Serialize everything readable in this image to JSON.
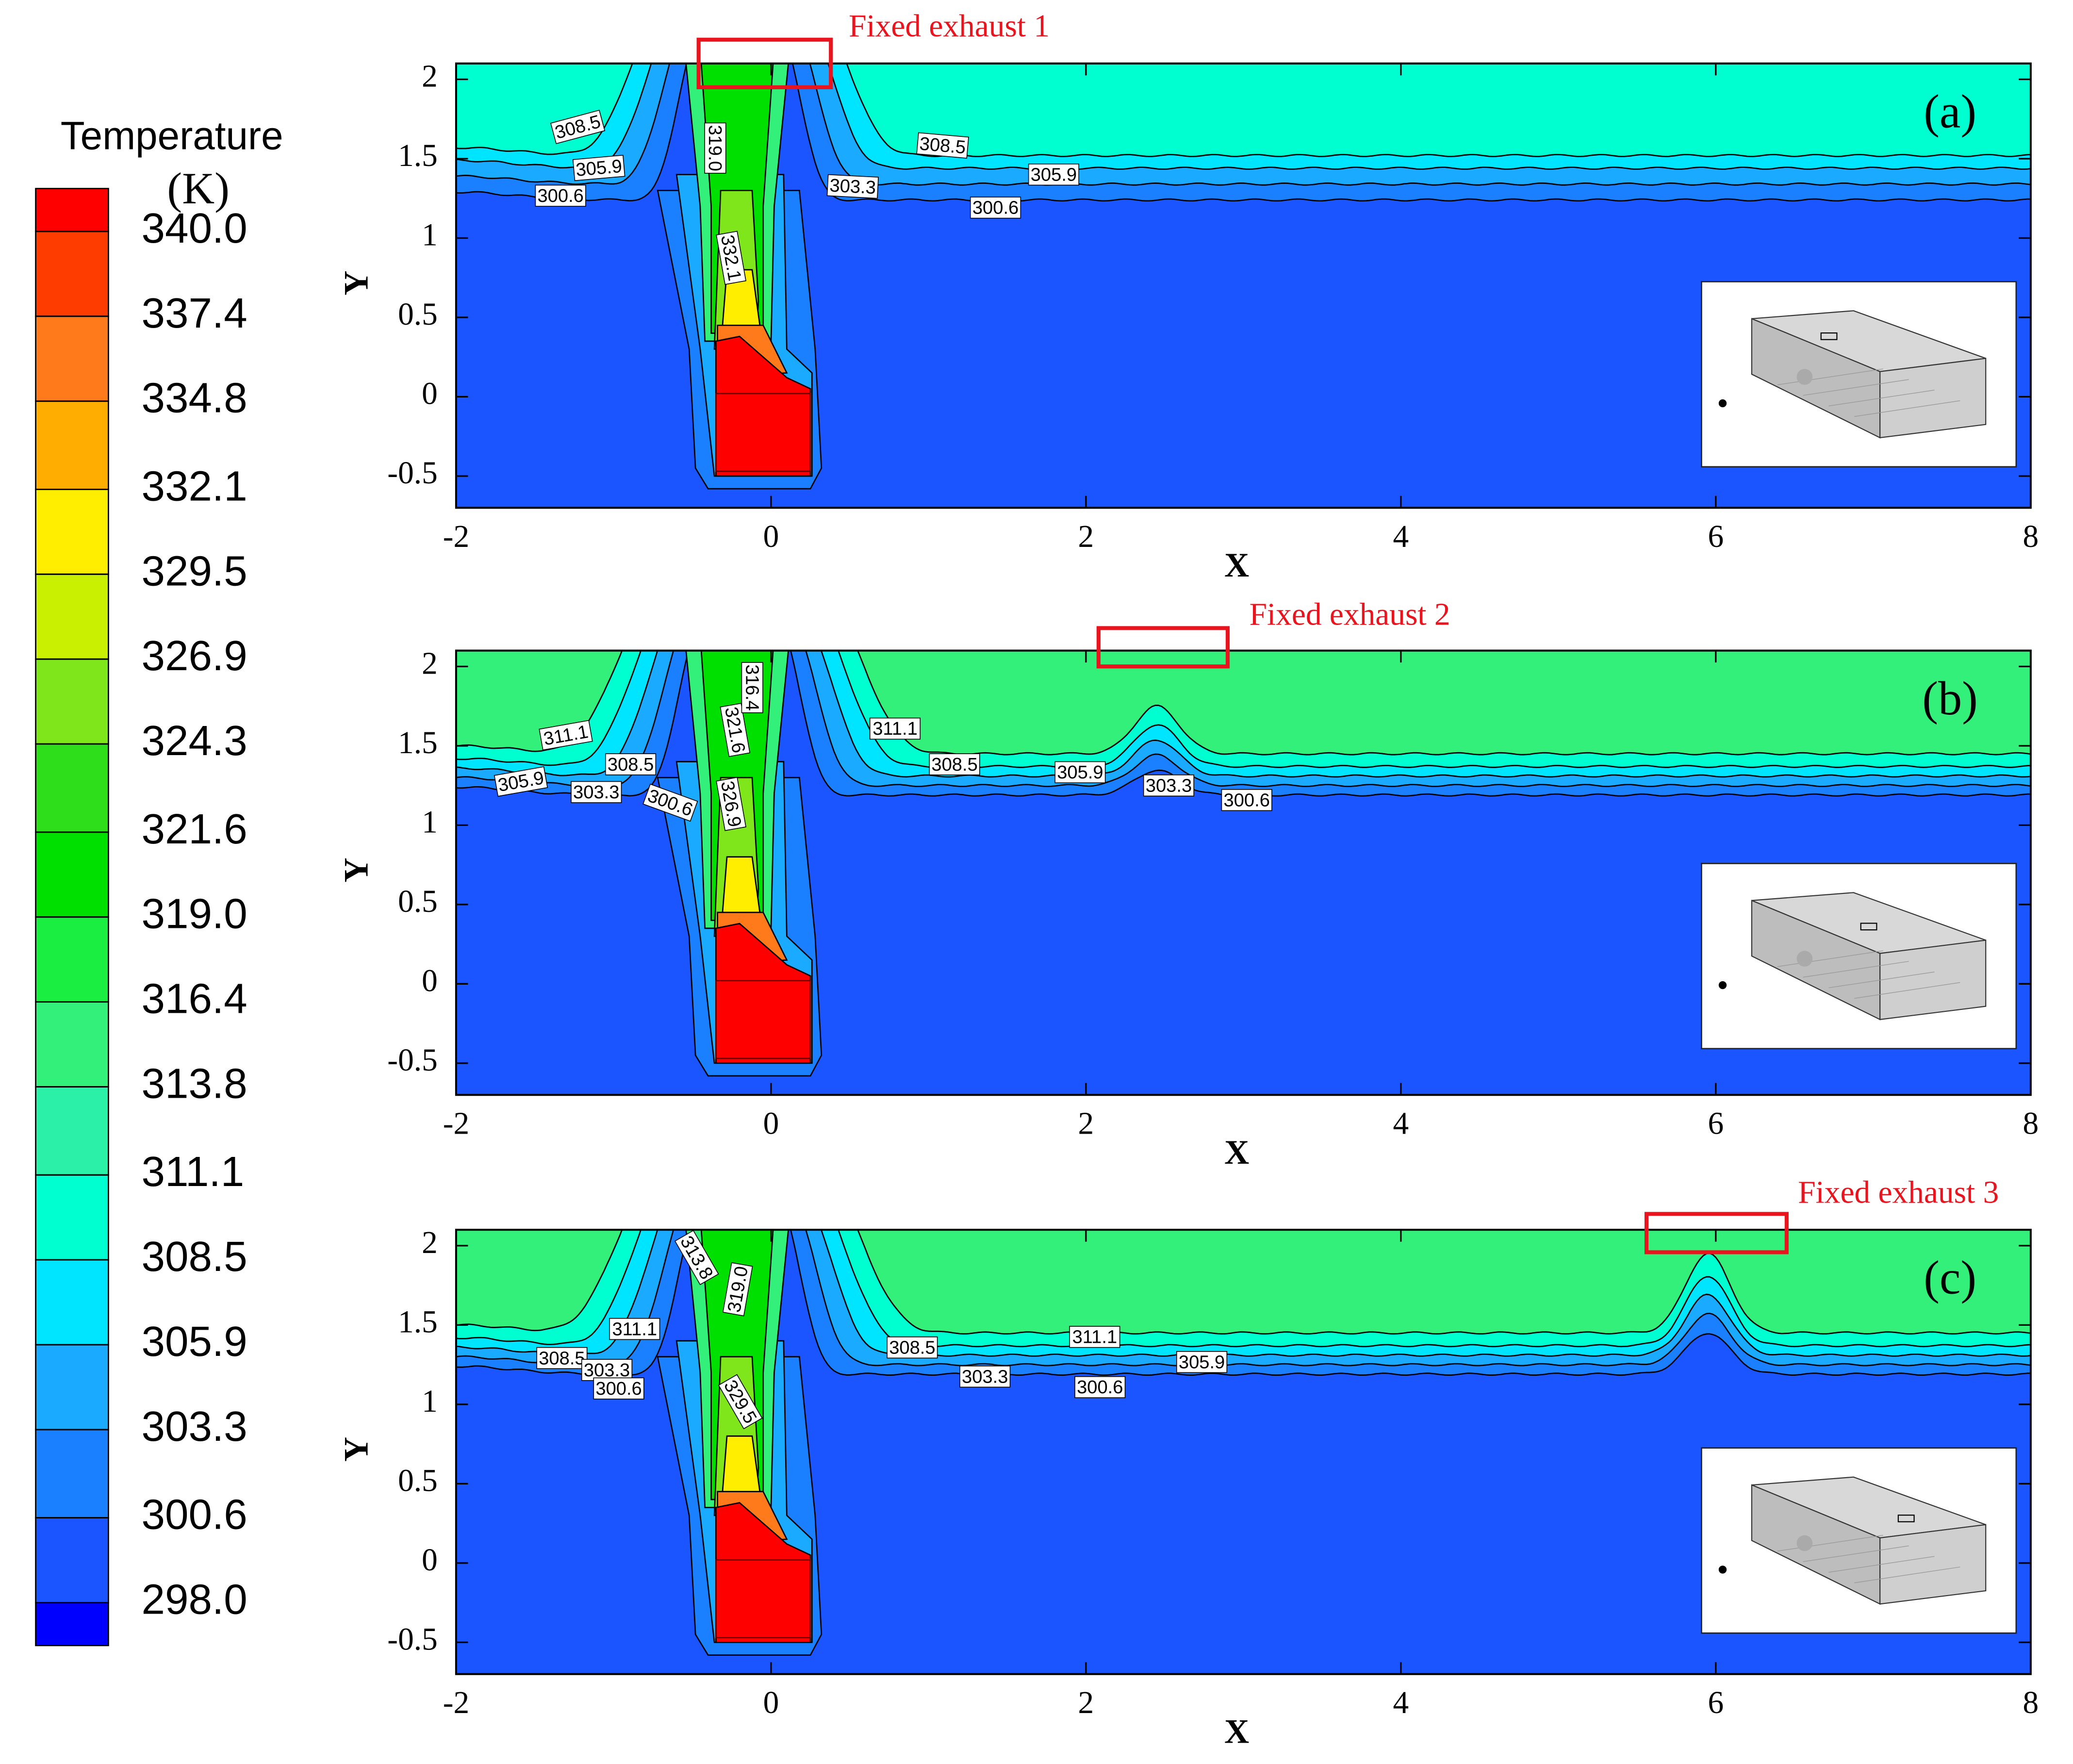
{
  "legend": {
    "title": "Temperature",
    "unit": "(K)",
    "levels": [
      {
        "value": 340,
        "label": "340.0"
      },
      337.4,
      334.8,
      332.1,
      329.5,
      326.9,
      324.3,
      321.6,
      {
        "value": 319,
        "label": "319.0"
      },
      316.4,
      313.8,
      311.1,
      308.5,
      305.9,
      303.3,
      300.6,
      {
        "value": 298,
        "label": "298.0"
      }
    ],
    "colors": [
      "#ff0000",
      "#ff3c00",
      "#ff7a1a",
      "#ffae00",
      "#ffee00",
      "#c8f000",
      "#7ee61a",
      "#2ede1a",
      "#00e000",
      "#1aee40",
      "#33f07a",
      "#2af0a8",
      "#00ffd0",
      "#00e5ff",
      "#1aaaff",
      "#1a80ff",
      "#1a55ff",
      "#0000ff"
    ]
  },
  "chart_data": [
    {
      "type": "contour",
      "panel_label": "(a)",
      "annotation": "Fixed exhaust 1",
      "x_label": "X",
      "y_label": "Y",
      "xlim": [
        -2,
        8
      ],
      "ylim": [
        -0.7,
        2.1
      ],
      "xticks": [
        -2,
        0,
        2,
        4,
        6,
        8
      ],
      "yticks": [
        -0.5,
        0,
        0.5,
        1,
        1.5,
        2
      ],
      "contour_labels": [
        "308.5",
        "305.9",
        "300.6",
        "319.0",
        "332.1",
        "308.5",
        "303.3",
        "305.9",
        "300.6"
      ]
    },
    {
      "type": "contour",
      "panel_label": "(b)",
      "annotation": "Fixed exhaust 2",
      "x_label": "X",
      "y_label": "Y",
      "xlim": [
        -2,
        8
      ],
      "ylim": [
        -0.7,
        2.1
      ],
      "xticks": [
        -2,
        0,
        2,
        4,
        6,
        8
      ],
      "yticks": [
        -0.5,
        0,
        0.5,
        1,
        1.5,
        2
      ],
      "contour_labels": [
        "311.1",
        "308.5",
        "305.9",
        "303.3",
        "300.6",
        "321.6",
        "316.4",
        "326.9",
        "311.1",
        "308.5",
        "305.9",
        "303.3",
        "300.6"
      ]
    },
    {
      "type": "contour",
      "panel_label": "(c)",
      "annotation": "Fixed exhaust 3",
      "x_label": "X",
      "y_label": "Y",
      "xlim": [
        -2,
        8
      ],
      "ylim": [
        -0.7,
        2.1
      ],
      "xticks": [
        -2,
        0,
        2,
        4,
        6,
        8
      ],
      "yticks": [
        -0.5,
        0,
        0.5,
        1,
        1.5,
        2
      ],
      "contour_labels": [
        "313.8",
        "319.0",
        "311.1",
        "308.5",
        "303.3",
        "300.6",
        "329.5",
        "308.5",
        "311.1",
        "305.9",
        "303.3",
        "300.6"
      ]
    }
  ]
}
